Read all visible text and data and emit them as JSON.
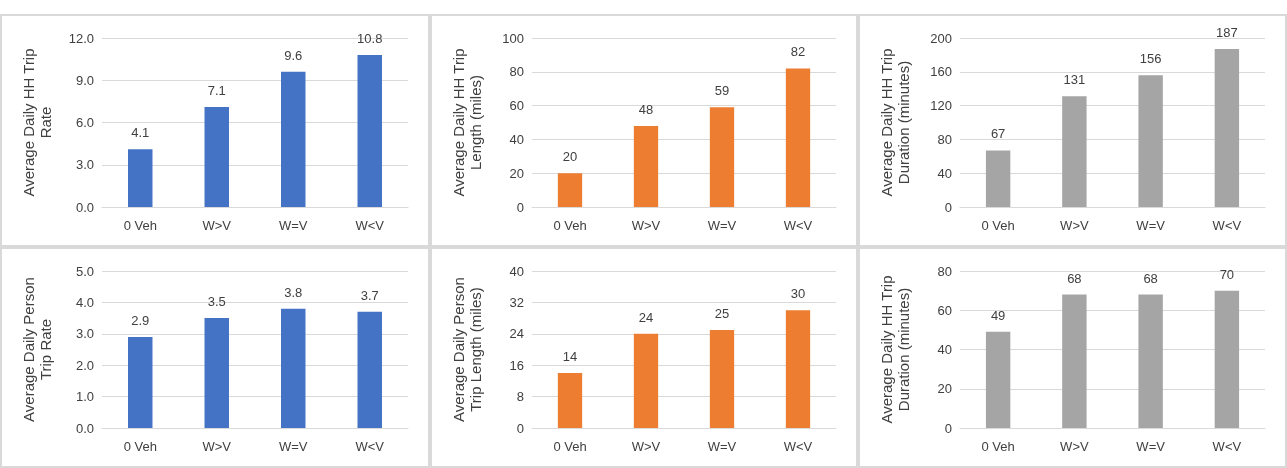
{
  "chart_data": [
    {
      "type": "bar",
      "ylabel": "Average Daily HH Trip Rate",
      "categories": [
        "0 Veh",
        "W>V",
        "W=V",
        "W<V"
      ],
      "values": [
        4.1,
        7.1,
        9.6,
        10.8
      ],
      "color": "#4472c4",
      "ylim": [
        0,
        12
      ],
      "yticks": [
        {
          "value": 0,
          "label": "0.0"
        },
        {
          "value": 3,
          "label": "3.0"
        },
        {
          "value": 6,
          "label": "6.0"
        },
        {
          "value": 9,
          "label": "9.0"
        },
        {
          "value": 12,
          "label": "12.0"
        }
      ],
      "grid": "y",
      "data_labels": true
    },
    {
      "type": "bar",
      "ylabel": "Average Daily HH Trip Length (miles)",
      "categories": [
        "0 Veh",
        "W>V",
        "W=V",
        "W<V"
      ],
      "values": [
        20,
        48,
        59,
        82
      ],
      "color": "#ed7d31",
      "ylim": [
        0,
        100
      ],
      "yticks": [
        0,
        20,
        40,
        60,
        80,
        100
      ],
      "grid": "y",
      "data_labels": true
    },
    {
      "type": "bar",
      "ylabel": "Average Daily HH Trip Duration (minutes)",
      "categories": [
        "0 Veh",
        "W>V",
        "W=V",
        "W<V"
      ],
      "values": [
        67,
        131,
        156,
        187
      ],
      "color": "#a5a5a5",
      "ylim": [
        0,
        200
      ],
      "yticks": [
        0,
        40,
        80,
        120,
        160,
        200
      ],
      "grid": "y",
      "data_labels": true
    },
    {
      "type": "bar",
      "ylabel": "Average Daily Person Trip Rate",
      "categories": [
        "0 Veh",
        "W>V",
        "W=V",
        "W<V"
      ],
      "values": [
        2.9,
        3.5,
        3.8,
        3.7
      ],
      "color": "#4472c4",
      "ylim": [
        0,
        5
      ],
      "yticks": [
        {
          "value": 0,
          "label": "0.0"
        },
        {
          "value": 1,
          "label": "1.0"
        },
        {
          "value": 2,
          "label": "2.0"
        },
        {
          "value": 3,
          "label": "3.0"
        },
        {
          "value": 4,
          "label": "4.0"
        },
        {
          "value": 5,
          "label": "5.0"
        }
      ],
      "grid": "y",
      "data_labels": true
    },
    {
      "type": "bar",
      "ylabel": "Average Daily Person Trip Length (miles)",
      "categories": [
        "0 Veh",
        "W>V",
        "W=V",
        "W<V"
      ],
      "values": [
        14,
        24,
        25,
        30
      ],
      "color": "#ed7d31",
      "ylim": [
        0,
        40
      ],
      "yticks": [
        0,
        8,
        16,
        24,
        32,
        40
      ],
      "grid": "y",
      "data_labels": true
    },
    {
      "type": "bar",
      "ylabel": "Average Daily HH Trip Duration (minutes)",
      "categories": [
        "0 Veh",
        "W>V",
        "W=V",
        "W<V"
      ],
      "values": [
        49,
        68,
        68,
        70
      ],
      "color": "#a5a5a5",
      "ylim": [
        0,
        80
      ],
      "yticks": [
        0,
        20,
        40,
        60,
        80
      ],
      "grid": "y",
      "data_labels": true
    }
  ]
}
